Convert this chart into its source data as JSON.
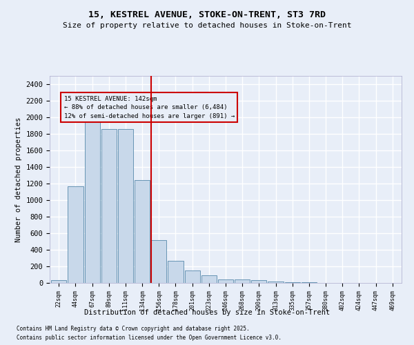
{
  "title1": "15, KESTREL AVENUE, STOKE-ON-TRENT, ST3 7RD",
  "title2": "Size of property relative to detached houses in Stoke-on-Trent",
  "xlabel": "Distribution of detached houses by size in Stoke-on-Trent",
  "ylabel": "Number of detached properties",
  "categories": [
    "22sqm",
    "44sqm",
    "67sqm",
    "89sqm",
    "111sqm",
    "134sqm",
    "156sqm",
    "178sqm",
    "201sqm",
    "223sqm",
    "246sqm",
    "268sqm",
    "290sqm",
    "313sqm",
    "335sqm",
    "357sqm",
    "380sqm",
    "402sqm",
    "424sqm",
    "447sqm",
    "469sqm"
  ],
  "bar_heights": [
    30,
    1170,
    1980,
    1860,
    1860,
    1240,
    520,
    270,
    150,
    90,
    40,
    40,
    35,
    20,
    10,
    5,
    3,
    3,
    2,
    2,
    2
  ],
  "bar_color": "#c8d8ea",
  "bar_edge_color": "#5588aa",
  "vline_x_index": 6,
  "vline_color": "#cc0000",
  "annotation_title": "15 KESTREL AVENUE: 142sqm",
  "annotation_line1": "← 88% of detached houses are smaller (6,484)",
  "annotation_line2": "12% of semi-detached houses are larger (891) →",
  "annotation_box_edge": "#cc0000",
  "ylim": [
    0,
    2500
  ],
  "yticks": [
    0,
    200,
    400,
    600,
    800,
    1000,
    1200,
    1400,
    1600,
    1800,
    2000,
    2200,
    2400
  ],
  "background_color": "#e8eef8",
  "grid_color": "#ffffff",
  "footer1": "Contains HM Land Registry data © Crown copyright and database right 2025.",
  "footer2": "Contains public sector information licensed under the Open Government Licence v3.0."
}
